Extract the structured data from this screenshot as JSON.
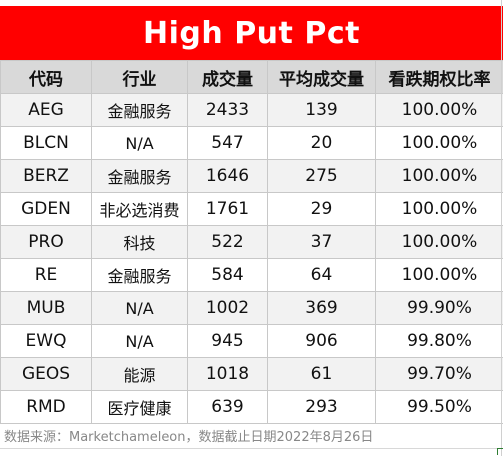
{
  "title": "High Put Pct",
  "headers": [
    "代码",
    "行业",
    "成交量",
    "平均成交量",
    "看跌期权比率"
  ],
  "rows": [
    [
      "AEG",
      "金融服务",
      "2433",
      "139",
      "100.00%"
    ],
    [
      "BLCN",
      "N/A",
      "547",
      "20",
      "100.00%"
    ],
    [
      "BERZ",
      "金融服务",
      "1646",
      "275",
      "100.00%"
    ],
    [
      "GDEN",
      "非必选消费",
      "1761",
      "29",
      "100.00%"
    ],
    [
      "PRO",
      "科技",
      "522",
      "37",
      "100.00%"
    ],
    [
      "RE",
      "金融服务",
      "584",
      "64",
      "100.00%"
    ],
    [
      "MUB",
      "N/A",
      "1002",
      "369",
      "99.90%"
    ],
    [
      "EWQ",
      "N/A",
      "945",
      "906",
      "99.80%"
    ],
    [
      "GEOS",
      "能源",
      "1018",
      "61",
      "99.70%"
    ],
    [
      "RMD",
      "医疗健康",
      "639",
      "293",
      "99.50%"
    ]
  ],
  "footnote": "数据来源：Marketchameleon，数据截止日期2022年8月26日",
  "colors": {
    "title_bg": "#ff0000",
    "header_bg": "#d9d9d9",
    "alt_row_bg": "#f2f2f2"
  }
}
